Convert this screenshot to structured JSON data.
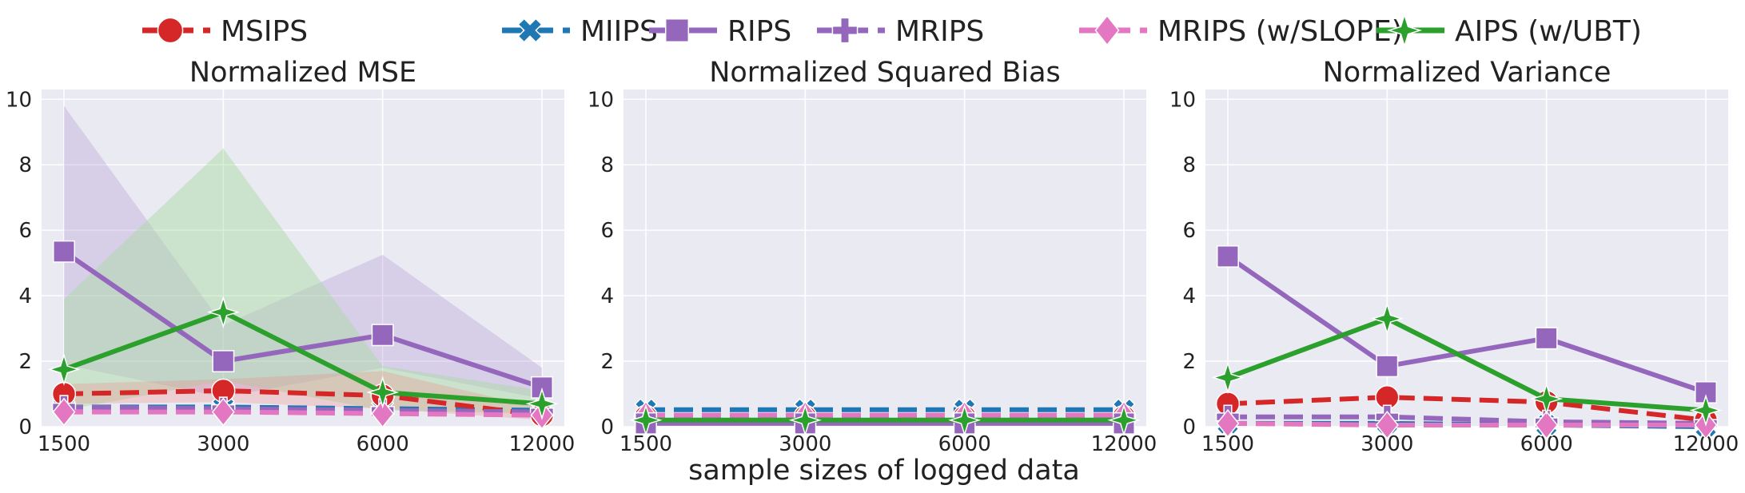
{
  "legend": [
    {
      "name": "MSIPS",
      "color": "#d62728",
      "marker": "circle",
      "dash": "dashed"
    },
    {
      "name": "MIIPS",
      "color": "#1f77b4",
      "marker": "x",
      "dash": "dashed"
    },
    {
      "name": "RIPS",
      "color": "#9467bd",
      "marker": "square",
      "dash": "solid"
    },
    {
      "name": "MRIPS",
      "color": "#9467bd",
      "marker": "plus",
      "dash": "dashed"
    },
    {
      "name": "MRIPS (w/SLOPE)",
      "color": "#e377c2",
      "marker": "diamond",
      "dash": "dashed"
    },
    {
      "name": "AIPS (w/UBT)",
      "color": "#2ca02c",
      "marker": "star",
      "dash": "solid"
    }
  ],
  "xlabel": "sample sizes of logged data",
  "chart_data": [
    {
      "type": "line",
      "title": "Normalized MSE",
      "categories": [
        "1500",
        "3000",
        "6000",
        "12000"
      ],
      "ylim": [
        0,
        10.3
      ],
      "yticks": [
        "0",
        "2",
        "4",
        "6",
        "8",
        "10"
      ],
      "grid": true,
      "series": [
        {
          "name": "MSIPS",
          "values": [
            1.0,
            1.1,
            0.95,
            0.35
          ],
          "lower": [
            0.7,
            0.75,
            0.55,
            0.2
          ],
          "upper": [
            1.3,
            1.45,
            1.7,
            0.55
          ]
        },
        {
          "name": "MIIPS",
          "values": [
            0.6,
            0.6,
            0.55,
            0.5
          ]
        },
        {
          "name": "RIPS",
          "values": [
            5.35,
            2.0,
            2.8,
            1.2
          ],
          "lower": [
            1.9,
            0.9,
            1.8,
            0.85
          ],
          "upper": [
            9.8,
            3.1,
            5.25,
            1.8
          ]
        },
        {
          "name": "MRIPS",
          "values": [
            0.6,
            0.55,
            0.5,
            0.45
          ]
        },
        {
          "name": "MRIPS (w/SLOPE)",
          "values": [
            0.45,
            0.45,
            0.4,
            0.35
          ]
        },
        {
          "name": "AIPS (w/UBT)",
          "values": [
            1.75,
            3.5,
            1.05,
            0.7
          ],
          "lower": [
            0.5,
            1.4,
            0.5,
            0.4
          ],
          "upper": [
            3.9,
            8.5,
            1.85,
            1.1
          ]
        }
      ]
    },
    {
      "type": "line",
      "title": "Normalized Squared Bias",
      "categories": [
        "1500",
        "3000",
        "6000",
        "12000"
      ],
      "ylim": [
        0,
        10.3
      ],
      "yticks": [
        "0",
        "2",
        "4",
        "6",
        "8",
        "10"
      ],
      "grid": true,
      "series": [
        {
          "name": "MSIPS",
          "values": [
            0.3,
            0.3,
            0.3,
            0.3
          ]
        },
        {
          "name": "MIIPS",
          "values": [
            0.52,
            0.52,
            0.52,
            0.52
          ]
        },
        {
          "name": "RIPS",
          "values": [
            0.1,
            0.1,
            0.1,
            0.1
          ]
        },
        {
          "name": "MRIPS",
          "values": [
            0.25,
            0.25,
            0.25,
            0.25
          ]
        },
        {
          "name": "MRIPS (w/SLOPE)",
          "values": [
            0.35,
            0.35,
            0.35,
            0.35
          ]
        },
        {
          "name": "AIPS (w/UBT)",
          "values": [
            0.2,
            0.2,
            0.2,
            0.2
          ]
        }
      ]
    },
    {
      "type": "line",
      "title": "Normalized Variance",
      "categories": [
        "1500",
        "3000",
        "6000",
        "12000"
      ],
      "ylim": [
        0,
        10.3
      ],
      "yticks": [
        "0",
        "2",
        "4",
        "6",
        "8",
        "10"
      ],
      "grid": true,
      "series": [
        {
          "name": "MSIPS",
          "values": [
            0.7,
            0.9,
            0.75,
            0.2
          ]
        },
        {
          "name": "MIIPS",
          "values": [
            0.1,
            0.1,
            0.05,
            0.0
          ]
        },
        {
          "name": "RIPS",
          "values": [
            5.2,
            1.85,
            2.7,
            1.05
          ]
        },
        {
          "name": "MRIPS",
          "values": [
            0.3,
            0.3,
            0.15,
            0.1
          ]
        },
        {
          "name": "MRIPS (w/SLOPE)",
          "values": [
            0.1,
            0.05,
            0.05,
            0.05
          ]
        },
        {
          "name": "AIPS (w/UBT)",
          "values": [
            1.5,
            3.3,
            0.85,
            0.5
          ]
        }
      ]
    }
  ]
}
